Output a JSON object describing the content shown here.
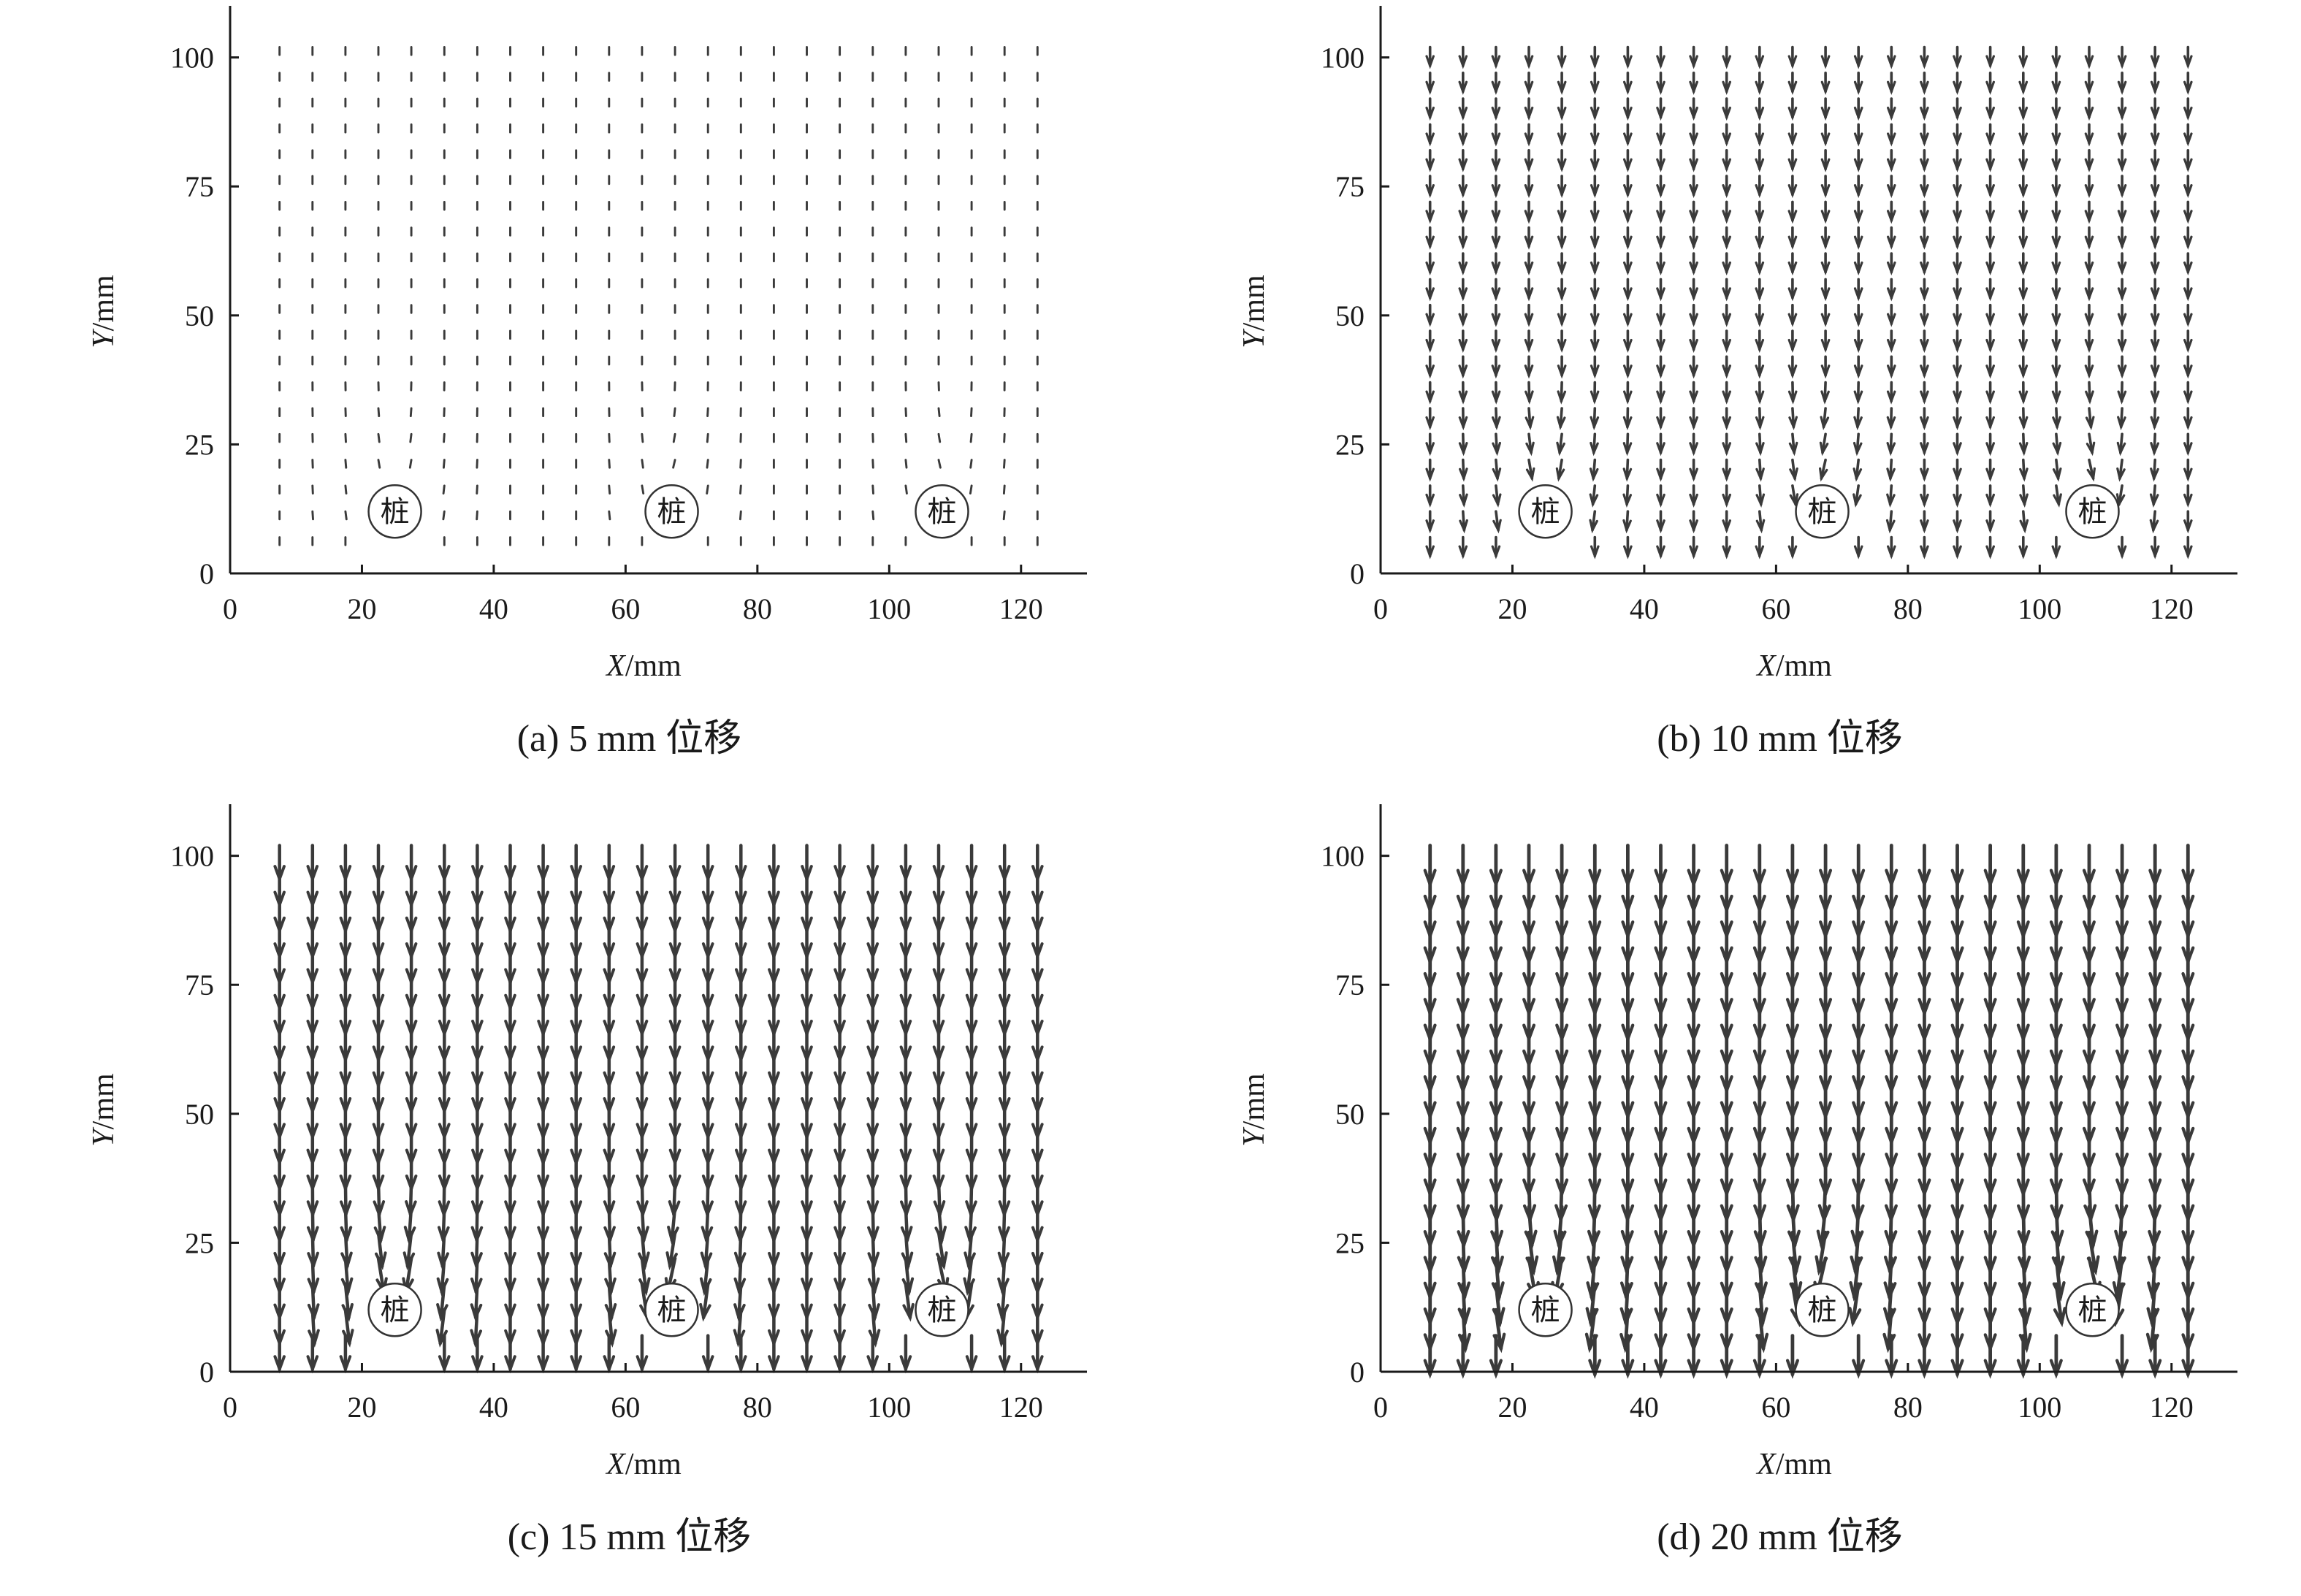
{
  "chart_data": [
    {
      "type": "quiver",
      "id": "a",
      "caption": "(a) 5 mm 位移",
      "xlabel": "X/mm",
      "ylabel": "Y/mm",
      "xlim": [
        0,
        130
      ],
      "ylim": [
        0,
        110
      ],
      "xticks": [
        0,
        20,
        40,
        60,
        80,
        100,
        120
      ],
      "yticks": [
        0,
        25,
        50,
        75,
        100
      ],
      "pile_label": "桩",
      "piles": [
        {
          "x": 25,
          "y": 12
        },
        {
          "x": 67,
          "y": 12
        },
        {
          "x": 108,
          "y": 12
        }
      ],
      "vector_grid": {
        "x_start": 7.5,
        "x_step": 5,
        "x_count": 24,
        "y_start": 7,
        "y_step": 5,
        "y_count": 20
      },
      "displacement_magnitude": 1.5,
      "convergence": 0.15
    },
    {
      "type": "quiver",
      "id": "b",
      "caption": "(b) 10 mm 位移",
      "xlabel": "X/mm",
      "ylabel": "Y/mm",
      "xlim": [
        0,
        130
      ],
      "ylim": [
        0,
        110
      ],
      "xticks": [
        0,
        20,
        40,
        60,
        80,
        100,
        120
      ],
      "yticks": [
        0,
        25,
        50,
        75,
        100
      ],
      "pile_label": "桩",
      "piles": [
        {
          "x": 25,
          "y": 12
        },
        {
          "x": 67,
          "y": 12
        },
        {
          "x": 108,
          "y": 12
        }
      ],
      "vector_grid": {
        "x_start": 7.5,
        "x_step": 5,
        "x_count": 24,
        "y_start": 7,
        "y_step": 5,
        "y_count": 20
      },
      "displacement_magnitude": 3.6,
      "convergence": 0.35
    },
    {
      "type": "quiver",
      "id": "c",
      "caption": "(c) 15 mm 位移",
      "xlabel": "X/mm",
      "ylabel": "Y/mm",
      "xlim": [
        0,
        130
      ],
      "ylim": [
        0,
        110
      ],
      "xticks": [
        0,
        20,
        40,
        60,
        80,
        100,
        120
      ],
      "yticks": [
        0,
        25,
        50,
        75,
        100
      ],
      "pile_label": "桩",
      "piles": [
        {
          "x": 25,
          "y": 12
        },
        {
          "x": 67,
          "y": 12
        },
        {
          "x": 108,
          "y": 12
        }
      ],
      "vector_grid": {
        "x_start": 7.5,
        "x_step": 5,
        "x_count": 24,
        "y_start": 7,
        "y_step": 5,
        "y_count": 20
      },
      "displacement_magnitude": 6.5,
      "convergence": 0.6
    },
    {
      "type": "quiver",
      "id": "d",
      "caption": "(d) 20 mm 位移",
      "xlabel": "X/mm",
      "ylabel": "Y/mm",
      "xlim": [
        0,
        130
      ],
      "ylim": [
        0,
        110
      ],
      "xticks": [
        0,
        20,
        40,
        60,
        80,
        100,
        120
      ],
      "yticks": [
        0,
        25,
        50,
        75,
        100
      ],
      "pile_label": "桩",
      "piles": [
        {
          "x": 25,
          "y": 12
        },
        {
          "x": 67,
          "y": 12
        },
        {
          "x": 108,
          "y": 12
        }
      ],
      "vector_grid": {
        "x_start": 7.5,
        "x_step": 5,
        "x_count": 24,
        "y_start": 7,
        "y_step": 5,
        "y_count": 20
      },
      "displacement_magnitude": 7.5,
      "convergence": 0.75
    }
  ],
  "colors": {
    "axis": "#1a1a1a",
    "vector": "#3a3a3a",
    "pile_outline": "#333333"
  }
}
